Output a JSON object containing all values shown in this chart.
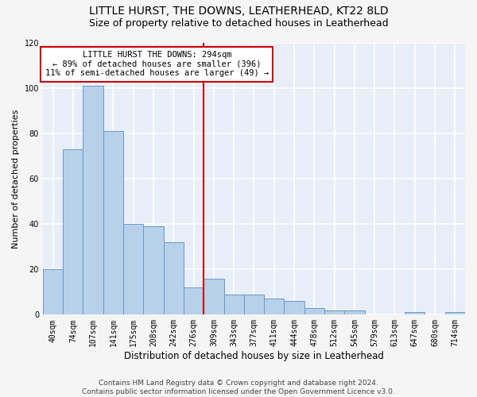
{
  "title": "LITTLE HURST, THE DOWNS, LEATHERHEAD, KT22 8LD",
  "subtitle": "Size of property relative to detached houses in Leatherhead",
  "xlabel": "Distribution of detached houses by size in Leatherhead",
  "ylabel": "Number of detached properties",
  "categories": [
    "40sqm",
    "74sqm",
    "107sqm",
    "141sqm",
    "175sqm",
    "208sqm",
    "242sqm",
    "276sqm",
    "309sqm",
    "343sqm",
    "377sqm",
    "411sqm",
    "444sqm",
    "478sqm",
    "512sqm",
    "545sqm",
    "579sqm",
    "613sqm",
    "647sqm",
    "680sqm",
    "714sqm"
  ],
  "values": [
    20,
    73,
    101,
    81,
    40,
    39,
    32,
    12,
    16,
    9,
    9,
    7,
    6,
    3,
    2,
    2,
    0,
    0,
    1,
    0,
    1
  ],
  "bar_color": "#b8d0ea",
  "bar_edge_color": "#6699cc",
  "vline_x_index": 8,
  "vline_color": "#cc0000",
  "annotation_text": "LITTLE HURST THE DOWNS: 294sqm\n← 89% of detached houses are smaller (396)\n11% of semi-detached houses are larger (49) →",
  "annotation_box_color": "#cc0000",
  "ylim": [
    0,
    120
  ],
  "yticks": [
    0,
    20,
    40,
    60,
    80,
    100,
    120
  ],
  "footer": "Contains HM Land Registry data © Crown copyright and database right 2024.\nContains public sector information licensed under the Open Government Licence v3.0.",
  "bg_color": "#e8eef8",
  "grid_color": "#ffffff",
  "fig_bg_color": "#f5f5f5",
  "title_fontsize": 10,
  "subtitle_fontsize": 9,
  "xlabel_fontsize": 8.5,
  "ylabel_fontsize": 8,
  "tick_fontsize": 7,
  "annotation_fontsize": 7.5,
  "footer_fontsize": 6.5
}
